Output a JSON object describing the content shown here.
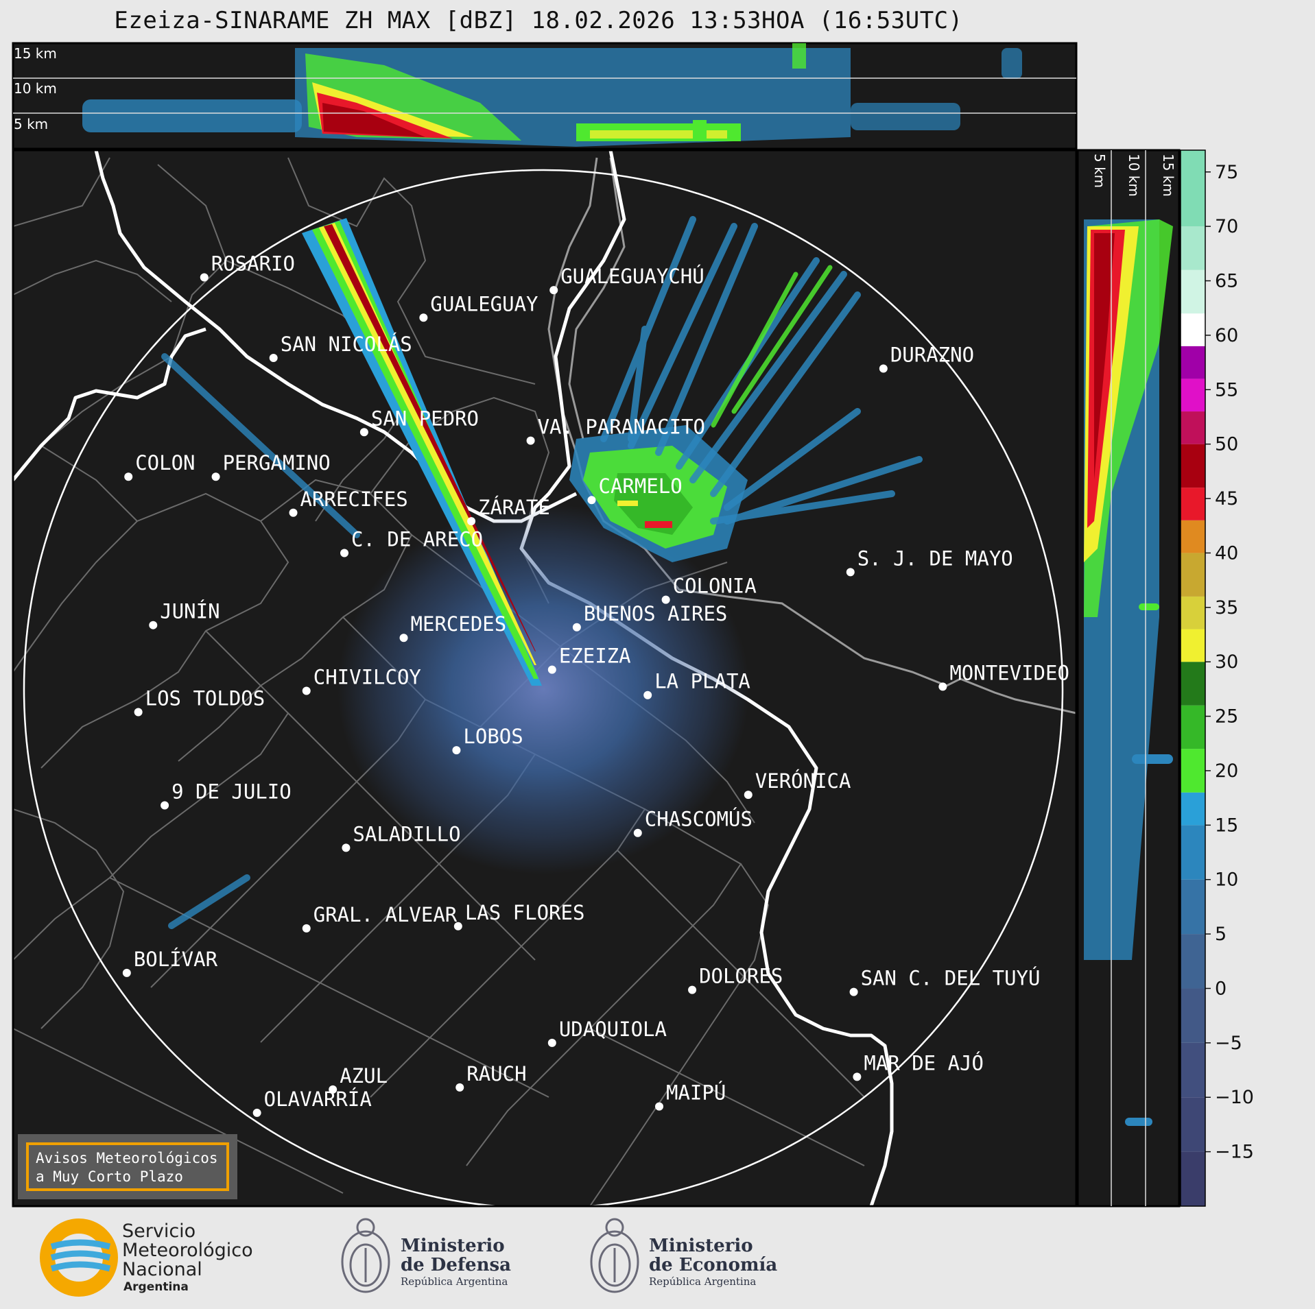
{
  "title": "Ezeiza-SINARAME ZH MAX [dBZ] 18.02.2026 13:53HOA (16:53UTC)",
  "top_panel": {
    "altitude_labels": [
      "15 km",
      "10 km",
      "5 km"
    ]
  },
  "side_panel": {
    "altitude_labels": [
      "5 km",
      "10 km",
      "15 km"
    ]
  },
  "colorbar": {
    "unit": "dBZ",
    "range": [
      -20,
      77
    ],
    "ticks": [
      "75",
      "70",
      "65",
      "60",
      "55",
      "50",
      "45",
      "40",
      "35",
      "30",
      "25",
      "20",
      "15",
      "10",
      "5",
      "0",
      "−5",
      "−10",
      "−15"
    ],
    "segments": [
      {
        "from": -20,
        "to": -15,
        "color": "#3a3d6a"
      },
      {
        "from": -15,
        "to": -10,
        "color": "#3e4775"
      },
      {
        "from": -10,
        "to": -5,
        "color": "#414f7e"
      },
      {
        "from": -5,
        "to": 0,
        "color": "#425987"
      },
      {
        "from": 0,
        "to": 5,
        "color": "#3f6493"
      },
      {
        "from": 5,
        "to": 10,
        "color": "#3673a6"
      },
      {
        "from": 10,
        "to": 15,
        "color": "#2c86bd"
      },
      {
        "from": 15,
        "to": 18,
        "color": "#2aa0d8"
      },
      {
        "from": 18,
        "to": 22,
        "color": "#4fe82f"
      },
      {
        "from": 22,
        "to": 26,
        "color": "#35b828"
      },
      {
        "from": 26,
        "to": 30,
        "color": "#237a1a"
      },
      {
        "from": 30,
        "to": 33,
        "color": "#f0f030"
      },
      {
        "from": 33,
        "to": 36,
        "color": "#d8d03a"
      },
      {
        "from": 36,
        "to": 40,
        "color": "#c8a830"
      },
      {
        "from": 40,
        "to": 43,
        "color": "#e08a20"
      },
      {
        "from": 43,
        "to": 46,
        "color": "#e8182a"
      },
      {
        "from": 46,
        "to": 50,
        "color": "#a80010"
      },
      {
        "from": 50,
        "to": 53,
        "color": "#c0105a"
      },
      {
        "from": 53,
        "to": 56,
        "color": "#e010c8"
      },
      {
        "from": 56,
        "to": 59,
        "color": "#a000a8"
      },
      {
        "from": 59,
        "to": 62,
        "color": "#ffffff"
      },
      {
        "from": 62,
        "to": 66,
        "color": "#d0f4e4"
      },
      {
        "from": 66,
        "to": 70,
        "color": "#a8e8cc"
      },
      {
        "from": 70,
        "to": 77,
        "color": "#80dcb4"
      }
    ]
  },
  "cities": [
    {
      "name": "ROSARIO",
      "lon": -60.64,
      "lat": -32.95
    },
    {
      "name": "GUALEGUAYCHÚ",
      "lon": -58.52,
      "lat": -33.01
    },
    {
      "name": "GUALEGUAY",
      "lon": -59.31,
      "lat": -33.14
    },
    {
      "name": "SAN NICOLÁS",
      "lon": -60.22,
      "lat": -33.33
    },
    {
      "name": "DURAZNO",
      "lon": -56.52,
      "lat": -33.38
    },
    {
      "name": "SAN PEDRO",
      "lon": -59.67,
      "lat": -33.68
    },
    {
      "name": "VA. PARANACITO",
      "lon": -58.66,
      "lat": -33.72
    },
    {
      "name": "COLON",
      "lon": -61.1,
      "lat": -33.89
    },
    {
      "name": "PERGAMINO",
      "lon": -60.57,
      "lat": -33.89
    },
    {
      "name": "CARMELO",
      "lon": -58.29,
      "lat": -34.0
    },
    {
      "name": "ARRECIFES",
      "lon": -60.1,
      "lat": -34.06
    },
    {
      "name": "ZÁRATE",
      "lon": -59.02,
      "lat": -34.1
    },
    {
      "name": "C. DE ARECO",
      "lon": -59.79,
      "lat": -34.25
    },
    {
      "name": "S. J. DE MAYO",
      "lon": -56.72,
      "lat": -34.34
    },
    {
      "name": "COLONIA",
      "lon": -57.84,
      "lat": -34.47
    },
    {
      "name": "JUNÍN",
      "lon": -60.95,
      "lat": -34.59
    },
    {
      "name": "BUENOS AIRES",
      "lon": -58.38,
      "lat": -34.6
    },
    {
      "name": "MERCEDES",
      "lon": -59.43,
      "lat": -34.65
    },
    {
      "name": "EZEIZA",
      "lon": -58.53,
      "lat": -34.8
    },
    {
      "name": "CHIVILCOY",
      "lon": -60.02,
      "lat": -34.9
    },
    {
      "name": "MONTEVIDEO",
      "lon": -56.16,
      "lat": -34.88
    },
    {
      "name": "LA PLATA",
      "lon": -57.95,
      "lat": -34.92
    },
    {
      "name": "LOS TOLDOS",
      "lon": -61.04,
      "lat": -35.0
    },
    {
      "name": "LOBOS",
      "lon": -59.11,
      "lat": -35.18
    },
    {
      "name": "VERÓNICA",
      "lon": -57.34,
      "lat": -35.39
    },
    {
      "name": "9 DE JULIO",
      "lon": -60.88,
      "lat": -35.44
    },
    {
      "name": "CHASCOMÚS",
      "lon": -58.01,
      "lat": -35.57
    },
    {
      "name": "SALADILLO",
      "lon": -59.78,
      "lat": -35.64
    },
    {
      "name": "GRAL. ALVEAR",
      "lon": -60.02,
      "lat": -36.02
    },
    {
      "name": "LAS FLORES",
      "lon": -59.1,
      "lat": -36.01
    },
    {
      "name": "BOLÍVAR",
      "lon": -61.11,
      "lat": -36.23
    },
    {
      "name": "DOLORES",
      "lon": -57.68,
      "lat": -36.31
    },
    {
      "name": "SAN C. DEL TUYÚ",
      "lon": -56.7,
      "lat": -36.32
    },
    {
      "name": "UDAQUIOLA",
      "lon": -58.53,
      "lat": -36.56
    },
    {
      "name": "MAR DE AJÓ",
      "lon": -56.68,
      "lat": -36.72
    },
    {
      "name": "AZUL",
      "lon": -59.86,
      "lat": -36.78
    },
    {
      "name": "RAUCH",
      "lon": -59.09,
      "lat": -36.77
    },
    {
      "name": "OLAVARRÍA",
      "lon": -60.32,
      "lat": -36.89
    },
    {
      "name": "MAIPÚ",
      "lon": -57.88,
      "lat": -36.86
    }
  ],
  "notice": {
    "line1": "Avisos Meteorológicos",
    "line2": "a Muy Corto Plazo"
  },
  "footer": {
    "smn": {
      "line1": "Servicio",
      "line2": "Meteorológico",
      "line3": "Nacional",
      "line4": "Argentina"
    },
    "defensa": {
      "line1": "Ministerio",
      "line2": "de Defensa",
      "line3": "República Argentina"
    },
    "economia": {
      "line1": "Ministerio",
      "line2": "de Economía",
      "line3": "República Argentina"
    },
    "brand_colors": {
      "smn_orange": "#f5a800",
      "smn_blue": "#3fa9dc",
      "ministerio_navy": "#2d3344"
    }
  }
}
